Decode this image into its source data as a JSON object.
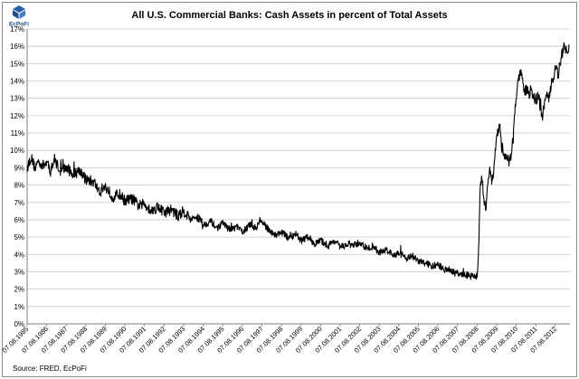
{
  "logo": {
    "text": "EcPoFi"
  },
  "chart_data": {
    "type": "line",
    "title": "All U.S. Commercial Banks: Cash Assets in percent of Total Assets",
    "xlabel": "",
    "ylabel": "",
    "source": "Source: FRED, EcPoFi",
    "ylim": [
      0,
      17
    ],
    "y_ticks": [
      "0%",
      "1%",
      "2%",
      "3%",
      "4%",
      "5%",
      "6%",
      "7%",
      "8%",
      "9%",
      "10%",
      "11%",
      "12%",
      "13%",
      "14%",
      "15%",
      "16%",
      "17%"
    ],
    "x_ticks": [
      "07.08.1985",
      "07.08.1986",
      "07.08.1987",
      "07.08.1988",
      "07.08.1989",
      "07.08.1990",
      "07.08.1991",
      "07.08.1992",
      "07.08.1993",
      "07.08.1994",
      "07.08.1995",
      "07.08.1996",
      "07.08.1997",
      "07.08.1998",
      "07.08.1999",
      "07.08.2000",
      "07.08.2001",
      "07.08.2002",
      "07.08.2003",
      "07.08.2004",
      "07.08.2005",
      "07.08.2006",
      "07.08.2007",
      "07.08.2008",
      "07.08.2009",
      "07.08.2010",
      "07.08.2011",
      "07.08.2012"
    ],
    "xlim": [
      1985.6,
      2013.35
    ],
    "grid": true,
    "series": [
      {
        "color": "#000000",
        "x": [
          1985.6,
          1985.8,
          1986.0,
          1986.2,
          1986.4,
          1986.6,
          1986.8,
          1987.0,
          1987.3,
          1987.6,
          1988.0,
          1988.3,
          1988.6,
          1989.0,
          1989.3,
          1989.6,
          1990.0,
          1990.3,
          1990.6,
          1991.0,
          1991.3,
          1991.6,
          1992.0,
          1992.3,
          1992.6,
          1993.0,
          1993.3,
          1993.6,
          1994.0,
          1994.3,
          1994.6,
          1995.0,
          1995.3,
          1995.6,
          1996.0,
          1996.3,
          1996.6,
          1997.0,
          1997.3,
          1997.5,
          1997.8,
          1998.0,
          1998.3,
          1998.6,
          1999.0,
          1999.3,
          1999.6,
          2000.0,
          2000.3,
          2000.6,
          2001.0,
          2001.3,
          2001.6,
          2002.0,
          2002.3,
          2002.6,
          2003.0,
          2003.3,
          2003.6,
          2004.0,
          2004.3,
          2004.6,
          2005.0,
          2005.3,
          2005.6,
          2006.0,
          2006.3,
          2006.6,
          2007.0,
          2007.3,
          2007.6,
          2007.9,
          2008.1,
          2008.3,
          2008.5,
          2008.62,
          2008.7,
          2008.75,
          2008.85,
          2008.95,
          2009.05,
          2009.15,
          2009.25,
          2009.35,
          2009.45,
          2009.55,
          2009.65,
          2009.75,
          2009.85,
          2009.95,
          2010.05,
          2010.15,
          2010.25,
          2010.35,
          2010.45,
          2010.55,
          2010.65,
          2010.75,
          2010.85,
          2010.95,
          2011.05,
          2011.15,
          2011.25,
          2011.35,
          2011.45,
          2011.55,
          2011.65,
          2011.75,
          2011.85,
          2011.95,
          2012.05,
          2012.15,
          2012.25,
          2012.35,
          2012.45,
          2012.55,
          2012.65,
          2012.75,
          2012.85,
          2012.95,
          2013.05,
          2013.15,
          2013.25,
          2013.3
        ],
        "y": [
          9.0,
          9.6,
          9.0,
          9.4,
          9.1,
          9.3,
          8.8,
          9.5,
          8.8,
          9.0,
          8.6,
          8.9,
          8.3,
          8.2,
          7.6,
          7.9,
          7.3,
          7.5,
          7.1,
          7.2,
          6.8,
          6.9,
          6.5,
          6.8,
          6.4,
          6.6,
          6.2,
          6.5,
          6.0,
          6.2,
          5.7,
          5.9,
          5.5,
          5.8,
          5.4,
          5.6,
          5.3,
          5.7,
          5.5,
          6.0,
          5.6,
          5.4,
          5.1,
          5.3,
          4.9,
          5.2,
          4.8,
          5.0,
          4.6,
          4.8,
          4.5,
          4.8,
          4.4,
          4.6,
          4.5,
          4.7,
          4.3,
          4.5,
          4.1,
          4.3,
          3.9,
          4.1,
          3.8,
          3.9,
          3.6,
          3.5,
          3.3,
          3.4,
          3.1,
          3.0,
          2.9,
          2.8,
          2.8,
          2.75,
          2.7,
          2.8,
          5.0,
          7.5,
          8.5,
          7.0,
          6.8,
          8.2,
          8.9,
          8.3,
          8.6,
          10.2,
          11.0,
          11.5,
          10.2,
          10.0,
          9.6,
          9.5,
          9.3,
          9.8,
          10.8,
          12.5,
          13.5,
          14.3,
          14.4,
          13.8,
          13.4,
          13.6,
          13.1,
          13.5,
          13.3,
          13.0,
          12.9,
          13.2,
          12.2,
          12.0,
          12.8,
          13.1,
          12.9,
          13.6,
          14.0,
          14.5,
          14.8,
          14.4,
          15.0,
          15.6,
          16.0,
          15.8,
          15.9,
          16.1
        ]
      }
    ]
  }
}
